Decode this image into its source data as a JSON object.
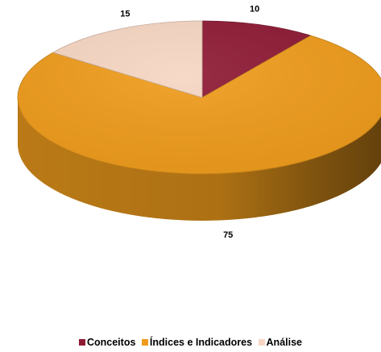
{
  "chart_data": {
    "type": "pie",
    "style": "3d",
    "categories": [
      "Conceitos",
      "Índices e Indicadores",
      "Análise"
    ],
    "values": [
      10,
      75,
      15
    ],
    "colors": [
      "#8e1a35",
      "#ef9c1c",
      "#f6d6c2"
    ],
    "data_labels": [
      "10",
      "75",
      "15"
    ],
    "legend_position": "bottom"
  }
}
